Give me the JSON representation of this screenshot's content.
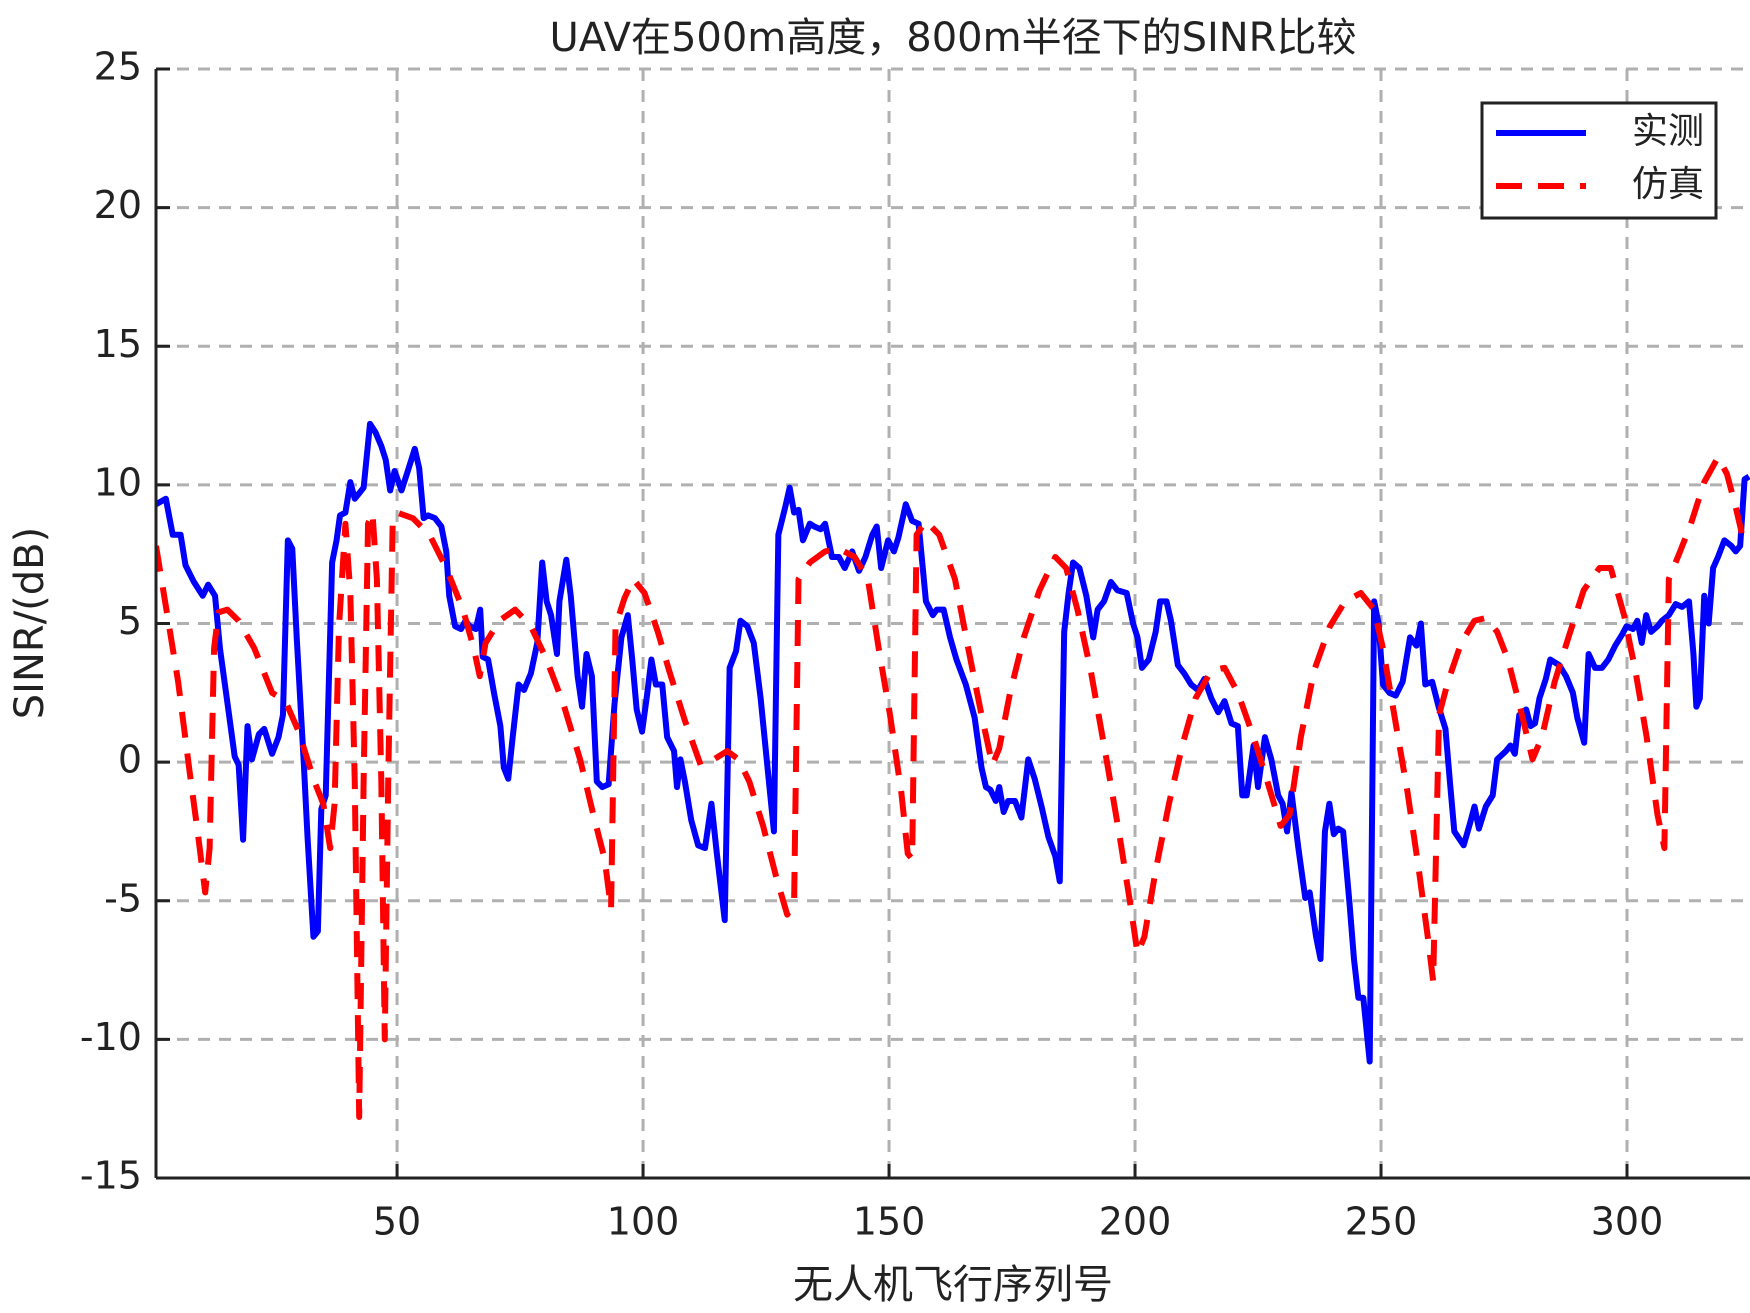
{
  "chart_data": {
    "type": "line",
    "title": "UAV在500m高度，800m半径下的SINR比较",
    "x_label": "无人机飞行序列号",
    "y_label": "SINR/(dB)",
    "xlim": [
      1,
      325
    ],
    "ylim": [
      -15,
      25
    ],
    "xticks": [
      50,
      100,
      150,
      200,
      250,
      300
    ],
    "yticks": [
      -15,
      -10,
      -5,
      0,
      5,
      10,
      15,
      20,
      25
    ],
    "grid": true,
    "legend": "northeast",
    "series": [
      {
        "name": "实测",
        "color": "#0000ff",
        "line_style": "solid",
        "x": [
          1,
          3,
          4.4,
          6,
          7,
          8.7,
          10.5,
          11.6,
          13,
          14,
          15.7,
          17,
          17.8,
          18.7,
          19.6,
          20.5,
          21.9,
          23,
          24.6,
          25.9,
          26.8,
          27.8,
          28.7,
          29.6,
          31,
          31.8,
          33,
          33.9,
          34.6,
          35.5,
          36.8,
          37.7,
          38.4,
          39.5,
          40.5,
          41.4,
          42.3,
          43.2,
          44.5,
          45.6,
          46.8,
          47.7,
          48.6,
          49.5,
          50.9,
          52,
          53.6,
          54.5,
          55.4,
          56.3,
          57.7,
          59,
          60,
          60.6,
          61.8,
          63,
          63.9,
          64.8,
          66,
          66.9,
          67.4,
          68.5,
          69.7,
          71,
          71.7,
          72.6,
          73.5,
          74.7,
          75.8,
          77.2,
          78.5,
          79.5,
          80.4,
          81.3,
          82.5,
          83,
          84.4,
          85.3,
          86.7,
          87.6,
          88.5,
          89.6,
          90.6,
          91.7,
          93,
          94.2,
          95.6,
          96.9,
          97.8,
          98.7,
          99.8,
          100.8,
          101.7,
          102.6,
          103.9,
          104.9,
          106.3,
          106.9,
          107.6,
          108.5,
          109.8,
          111.2,
          112.6,
          113.9,
          115,
          116.6,
          117.6,
          118.9,
          119.8,
          121.2,
          122.5,
          123.9,
          125.3,
          126.6,
          127.5,
          128.9,
          129.8,
          130.7,
          131.6,
          132.5,
          133.9,
          134.8,
          136.1,
          137,
          138.4,
          139.8,
          141,
          142.5,
          143.9,
          145.2,
          146.6,
          147.5,
          148.4,
          149.8,
          151,
          151.9,
          153.4,
          154.7,
          156,
          157.5,
          158.9,
          159.7,
          161.1,
          162.4,
          163.7,
          165.6,
          167.4,
          168.8,
          169.7,
          170.6,
          171.7,
          172.4,
          173.3,
          174.2,
          175.6,
          176.9,
          178.3,
          179.6,
          181,
          182.4,
          183.8,
          184.7,
          185.6,
          186.5,
          187.4,
          188.7,
          190.1,
          191.5,
          192.4,
          193.7,
          195.1,
          196.4,
          198.3,
          199.6,
          200.5,
          201.4,
          202.8,
          204.2,
          205.1,
          206.4,
          207.3,
          208.7,
          210,
          211.4,
          212.8,
          214.1,
          215.5,
          216.9,
          218.2,
          219.6,
          220.9,
          221.8,
          222.7,
          224.1,
          225,
          226.4,
          227.7,
          229.1,
          230,
          230.9,
          231.8,
          233.2,
          234.6,
          235.5,
          236.8,
          237.7,
          238.6,
          239.5,
          240.4,
          241.3,
          242.3,
          243.6,
          244.5,
          245.4,
          246.4,
          247.7,
          248.6,
          249.5,
          250.4,
          251.7,
          253,
          254.4,
          255.9,
          257.2,
          258.1,
          259,
          260.4,
          261.7,
          263.1,
          264,
          264.9,
          266.8,
          268.1,
          269,
          269.9,
          271.3,
          272.7,
          273.6,
          275.4,
          276.3,
          277.2,
          278.1,
          279.5,
          280.4,
          281.3,
          282.2,
          283.5,
          284.4,
          286.2,
          287.6,
          289,
          289.9,
          291.3,
          292.2,
          293.5,
          294.9,
          296.2,
          297.6,
          299,
          299.9,
          301.2,
          302.1,
          303,
          303.9,
          304.9,
          306.2,
          307.1,
          308.5,
          309.9,
          311.2,
          312.6,
          313.5,
          314.1,
          314.8,
          315.7,
          316.6,
          317.5,
          318.5,
          319.8,
          321.2,
          322.1,
          323,
          323.9,
          324.8
        ],
        "values": [
          9.3,
          9.5,
          8.2,
          8.2,
          7.1,
          6.5,
          6.0,
          6.4,
          6.0,
          4.1,
          1.9,
          0.2,
          -0.1,
          -2.8,
          1.3,
          0.1,
          1.0,
          1.2,
          0.3,
          0.9,
          1.7,
          8.0,
          7.7,
          4.5,
          0.1,
          -2.7,
          -6.3,
          -6.1,
          -1.7,
          -1.2,
          7.2,
          8.0,
          8.9,
          9.0,
          10.1,
          9.5,
          9.7,
          9.9,
          12.2,
          11.9,
          11.4,
          10.9,
          9.8,
          10.5,
          9.8,
          10.4,
          11.3,
          10.6,
          8.8,
          8.9,
          8.8,
          8.5,
          7.6,
          6.0,
          4.9,
          4.8,
          5.1,
          4.9,
          4.8,
          5.5,
          3.8,
          3.7,
          2.5,
          1.3,
          -0.2,
          -0.6,
          0.9,
          2.8,
          2.6,
          3.2,
          4.3,
          7.2,
          5.8,
          5.3,
          3.9,
          5.8,
          7.3,
          6.0,
          3.1,
          2.0,
          3.9,
          3.1,
          -0.7,
          -0.9,
          -0.8,
          2.1,
          4.5,
          5.3,
          3.7,
          1.9,
          1.1,
          2.4,
          3.7,
          2.8,
          2.8,
          0.9,
          0.4,
          -0.9,
          0.1,
          -0.7,
          -2.1,
          -3.0,
          -3.1,
          -1.5,
          -3.3,
          -5.7,
          3.4,
          4.0,
          5.1,
          4.9,
          4.3,
          2.3,
          -0.2,
          -2.5,
          8.2,
          9.2,
          9.9,
          9.0,
          9.1,
          8.0,
          8.6,
          8.5,
          8.4,
          8.6,
          7.4,
          7.4,
          7.0,
          7.6,
          6.9,
          7.4,
          8.2,
          8.5,
          7.0,
          8.0,
          7.6,
          8.1,
          9.3,
          8.7,
          8.6,
          5.8,
          5.3,
          5.5,
          5.5,
          4.5,
          3.7,
          2.8,
          1.6,
          -0.2,
          -0.9,
          -1.0,
          -1.4,
          -0.9,
          -1.8,
          -1.4,
          -1.4,
          -2.0,
          0.1,
          -0.6,
          -1.6,
          -2.7,
          -3.4,
          -4.3,
          4.7,
          6.1,
          7.2,
          7.0,
          6.0,
          4.5,
          5.5,
          5.8,
          6.5,
          6.2,
          6.1,
          5.0,
          4.5,
          3.4,
          3.7,
          4.7,
          5.8,
          5.8,
          5.1,
          3.5,
          3.2,
          2.8,
          2.6,
          3.0,
          2.3,
          1.8,
          2.2,
          1.4,
          1.3,
          -1.2,
          -1.2,
          0.6,
          -0.9,
          0.9,
          0.1,
          -1.2,
          -1.5,
          -2.5,
          -1.1,
          -3.1,
          -4.9,
          -4.7,
          -6.3,
          -7.1,
          -2.5,
          -1.5,
          -2.6,
          -2.4,
          -2.5,
          -5.1,
          -7.1,
          -8.5,
          -8.5,
          -10.8,
          5.8,
          5.0,
          2.8,
          2.5,
          2.4,
          2.9,
          4.5,
          4.2,
          5.0,
          2.8,
          2.9,
          2.0,
          1.2,
          -0.7,
          -2.5,
          -3.0,
          -2.2,
          -1.6,
          -2.4,
          -1.6,
          -1.2,
          0.1,
          0.4,
          0.6,
          0.3,
          1.7,
          1.9,
          1.3,
          1.4,
          2.3,
          3.0,
          3.7,
          3.5,
          3.1,
          2.5,
          1.6,
          0.7,
          3.9,
          3.4,
          3.4,
          3.7,
          4.2,
          4.6,
          4.9,
          4.8,
          5.1,
          4.3,
          5.3,
          4.7,
          4.9,
          5.1,
          5.3,
          5.7,
          5.6,
          5.8,
          3.9,
          2.0,
          2.3,
          6.0,
          5.0,
          7.0,
          7.4,
          8.0,
          7.8,
          7.6,
          7.8,
          10.2,
          10.3
        ]
      },
      {
        "name": "仿真",
        "color": "#ff0000",
        "line_style": "dashed",
        "x": [
          1,
          3.3,
          5.5,
          7.8,
          9.6,
          11,
          11.9,
          12.8,
          13.7,
          15.5,
          17.8,
          21,
          24.6,
          27.3,
          30,
          33.2,
          35,
          36.4,
          37.3,
          38.2,
          39.5,
          40.5,
          41.4,
          42.3,
          43.2,
          44.1,
          45,
          45.9,
          46.8,
          47.5,
          48.2,
          49.1,
          50,
          53.2,
          56.6,
          60,
          63.4,
          65.6,
          66.8,
          68,
          70.8,
          74,
          77.2,
          80.4,
          83.8,
          87.2,
          89.9,
          92.2,
          93.5,
          94.4,
          96.2,
          98,
          100.3,
          103,
          105.3,
          108.5,
          111.7,
          114.4,
          117.1,
          119.4,
          121.6,
          124.4,
          127,
          129.3,
          130.7,
          131.6,
          133.9,
          137,
          139.8,
          143,
          145.7,
          147.9,
          150.2,
          152.5,
          153.8,
          154.7,
          155.6,
          157.5,
          160.2,
          163.4,
          166.1,
          168.8,
          171,
          172.4,
          174.6,
          177.4,
          180.6,
          183.8,
          186,
          188.3,
          191,
          194.2,
          196.9,
          199.2,
          200.5,
          201.9,
          204.2,
          206.9,
          209.6,
          212.3,
          215.5,
          218.2,
          220.9,
          224.1,
          226.9,
          229.6,
          231.4,
          233.7,
          236.4,
          239.6,
          242.7,
          245.9,
          248.6,
          250.4,
          252.7,
          255.4,
          257.7,
          259.5,
          260.6,
          261.8,
          263.6,
          266.3,
          269,
          271.3,
          273.6,
          275.8,
          278.1,
          280.8,
          282.7,
          285.3,
          288.1,
          291.2,
          294.4,
          296.7,
          299.4,
          301.7,
          304,
          306.2,
          307.6,
          308.5,
          310.8,
          313,
          315.7,
          318.5,
          320.3,
          322.1,
          323.4,
          324.8
        ],
        "values": [
          7.8,
          5.3,
          2.9,
          -0.3,
          -2.7,
          -4.7,
          -3.1,
          4.1,
          5.4,
          5.5,
          5.1,
          4.1,
          2.5,
          2.2,
          1.1,
          -0.7,
          -1.5,
          -3.1,
          -1.5,
          4.9,
          8.6,
          6.1,
          -0.7,
          -12.8,
          -0.7,
          8.6,
          9.0,
          6.6,
          -0.7,
          -10.0,
          -0.7,
          8.6,
          9.0,
          8.8,
          8.2,
          7.0,
          5.5,
          4.1,
          3.1,
          4.3,
          5.1,
          5.5,
          4.9,
          3.7,
          2.1,
          0.1,
          -1.9,
          -3.5,
          -5.3,
          4.9,
          5.9,
          6.6,
          6.1,
          4.7,
          3.3,
          1.5,
          -0.1,
          0.1,
          0.4,
          0.1,
          -0.7,
          -2.3,
          -4.1,
          -5.5,
          -5.1,
          6.6,
          7.2,
          7.6,
          7.7,
          7.4,
          6.6,
          4.1,
          1.7,
          -1.1,
          -3.3,
          -3.5,
          8.2,
          8.7,
          8.2,
          6.6,
          4.1,
          1.7,
          -0.1,
          0.5,
          2.5,
          4.5,
          6.2,
          7.4,
          7.0,
          5.5,
          3.3,
          0.1,
          -2.7,
          -5.3,
          -6.9,
          -6.3,
          -3.9,
          -1.5,
          0.6,
          2.3,
          3.3,
          3.4,
          2.5,
          0.9,
          -0.7,
          -2.3,
          -1.9,
          0.9,
          3.3,
          4.9,
          5.8,
          6.1,
          5.5,
          4.1,
          1.7,
          -1.1,
          -3.9,
          -6.3,
          -7.9,
          1.7,
          2.9,
          4.3,
          5.1,
          5.2,
          4.7,
          3.7,
          2.1,
          0.1,
          0.9,
          2.9,
          4.5,
          6.2,
          7.0,
          7.0,
          5.3,
          3.3,
          0.9,
          -1.9,
          -3.1,
          6.6,
          7.6,
          8.6,
          10.1,
          11.0,
          10.4,
          9.2,
          8.2,
          7.8
        ]
      }
    ]
  }
}
